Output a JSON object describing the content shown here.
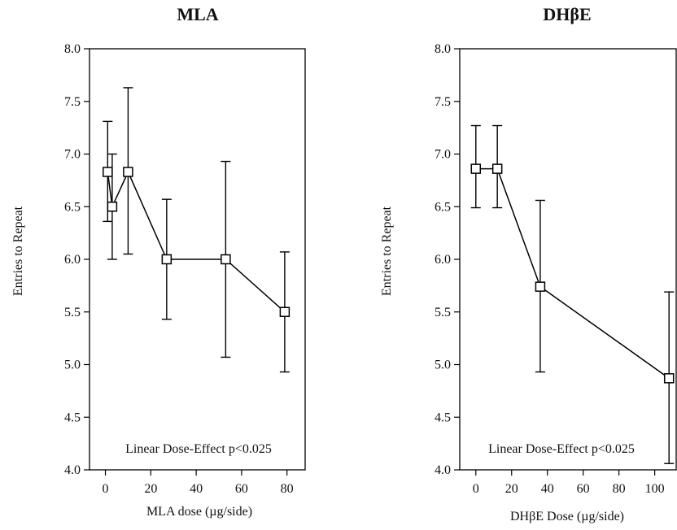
{
  "chart_data": [
    {
      "type": "line",
      "title": "MLA",
      "xlabel": "MLA dose (µg/side)",
      "ylabel": "Entries to Repeat",
      "annotation": "Linear Dose-Effect p<0.025",
      "xlim": [
        -7,
        88
      ],
      "ylim": [
        4.0,
        8.0
      ],
      "xticks": [
        0,
        20,
        40,
        60,
        80
      ],
      "yticks": [
        4.0,
        4.5,
        5.0,
        5.5,
        6.0,
        6.5,
        7.0,
        7.5,
        8.0
      ],
      "grid": false,
      "legend": "none",
      "series": [
        {
          "x": [
            1,
            3,
            10,
            27,
            53,
            79
          ],
          "y": [
            6.83,
            6.5,
            6.83,
            6.0,
            6.0,
            5.5
          ],
          "err_low": [
            6.36,
            6.0,
            6.05,
            5.43,
            5.07,
            4.93
          ],
          "err_high": [
            7.31,
            7.0,
            7.63,
            6.57,
            6.93,
            6.07
          ]
        }
      ]
    },
    {
      "type": "line",
      "title": "DHβE",
      "xlabel": "DHβE Dose (µg/side)",
      "ylabel": "Entries to Repeat",
      "annotation": "Linear Dose-Effect p<0.025",
      "xlim": [
        -9,
        112
      ],
      "ylim": [
        4.0,
        8.0
      ],
      "xticks": [
        0,
        20,
        40,
        60,
        80,
        100
      ],
      "yticks": [
        4.0,
        4.5,
        5.0,
        5.5,
        6.0,
        6.5,
        7.0,
        7.5,
        8.0
      ],
      "grid": false,
      "legend": "none",
      "series": [
        {
          "x": [
            0,
            12,
            36,
            108
          ],
          "y": [
            6.86,
            6.86,
            5.74,
            4.87
          ],
          "err_low": [
            6.49,
            6.49,
            4.93,
            4.06
          ],
          "err_high": [
            7.27,
            7.27,
            6.56,
            5.69
          ]
        }
      ]
    }
  ]
}
